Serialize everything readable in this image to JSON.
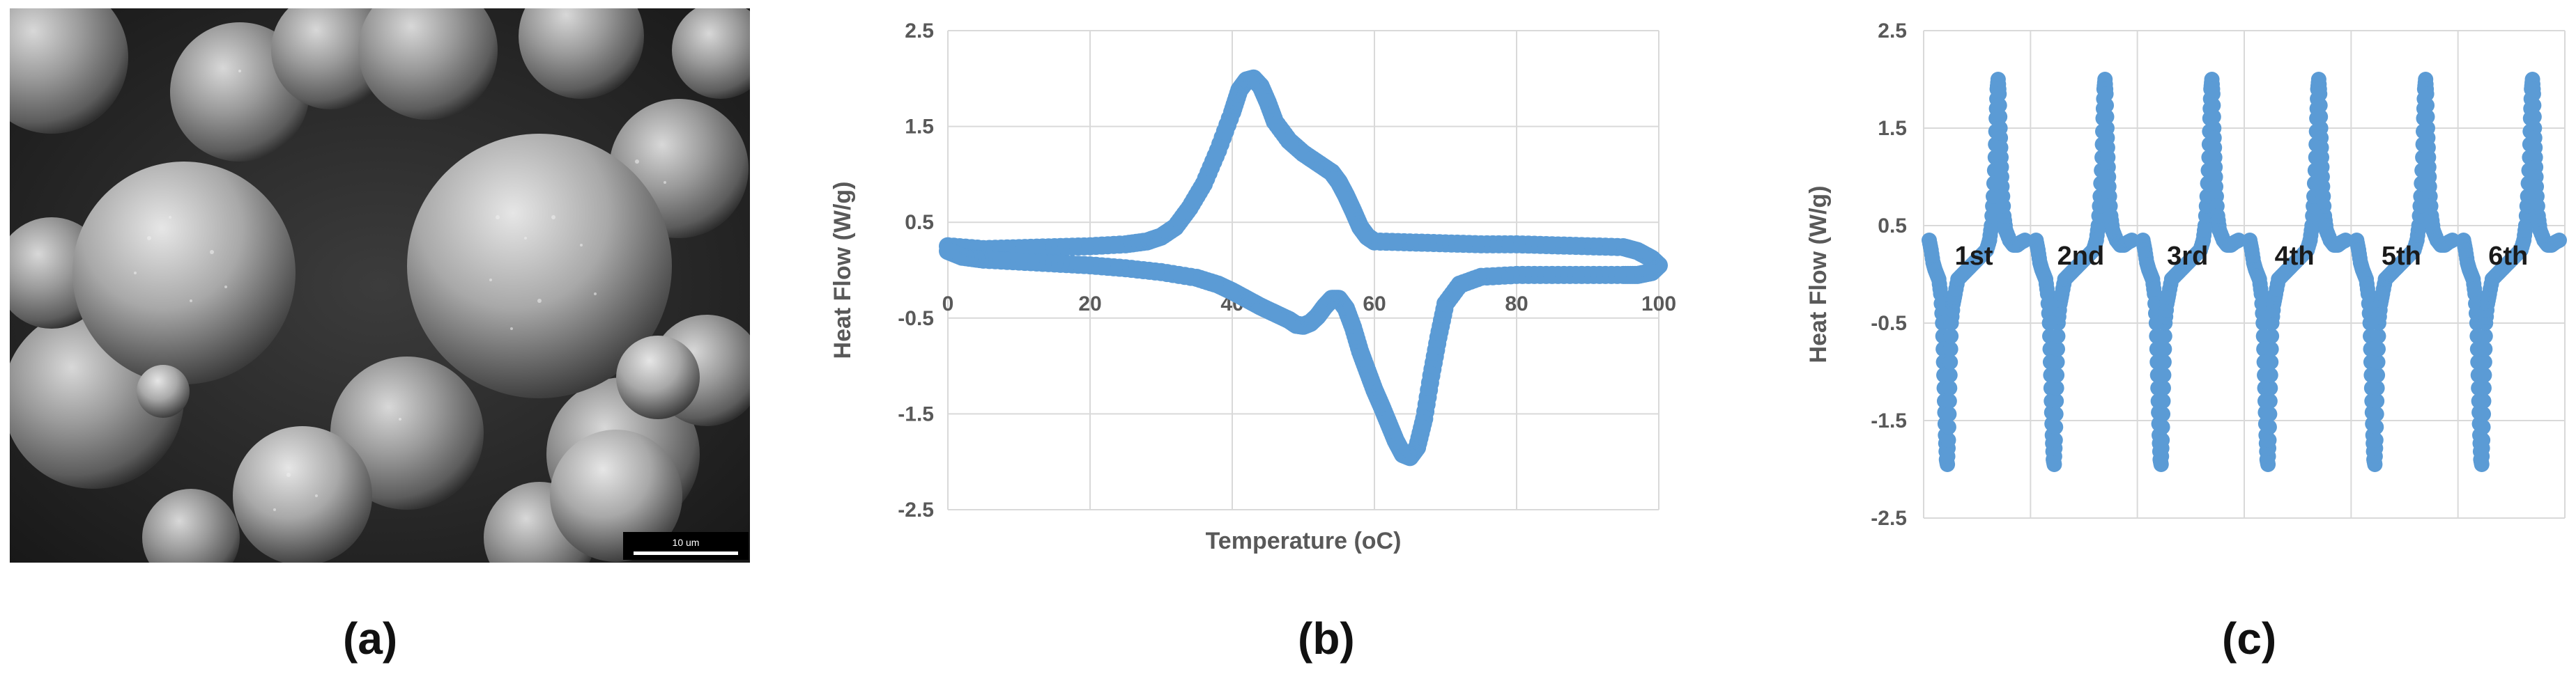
{
  "figure": {
    "panels": [
      {
        "id": "a",
        "label": "(a)",
        "type": "micrograph",
        "scale_bar_text": "10 um"
      },
      {
        "id": "b",
        "label": "(b)"
      },
      {
        "id": "c",
        "label": "(c)"
      }
    ]
  },
  "colors": {
    "series": "#5B9BD5",
    "grid": "#D9D9D9",
    "axis_text": "#595959",
    "cycle_label": "#1a1a1a"
  },
  "chart_data": [
    {
      "panel": "b",
      "type": "scatter",
      "title": "",
      "xlabel": "Temperature (oC)",
      "ylabel": "Heat Flow (W/g)",
      "xlim": [
        0,
        100
      ],
      "ylim": [
        -2.5,
        2.5
      ],
      "x_ticks": [
        "0",
        "20",
        "40",
        "60",
        "80",
        "100"
      ],
      "y_ticks": [
        "2.5",
        "1.5",
        "0.5",
        "-0.5",
        "-1.5",
        "-2.5"
      ],
      "grid": true,
      "series": [
        {
          "points": [
            [
              0,
              0.25
            ],
            [
              5,
              0.22
            ],
            [
              10,
              0.23
            ],
            [
              15,
              0.24
            ],
            [
              20,
              0.25
            ],
            [
              25,
              0.27
            ],
            [
              28,
              0.3
            ],
            [
              30,
              0.35
            ],
            [
              32,
              0.45
            ],
            [
              34,
              0.65
            ],
            [
              36,
              0.9
            ],
            [
              38,
              1.25
            ],
            [
              40,
              1.65
            ],
            [
              41,
              1.88
            ],
            [
              42,
              1.98
            ],
            [
              43,
              2.0
            ],
            [
              44,
              1.92
            ],
            [
              45,
              1.75
            ],
            [
              46,
              1.55
            ],
            [
              48,
              1.35
            ],
            [
              50,
              1.22
            ],
            [
              52,
              1.12
            ],
            [
              54,
              1.02
            ],
            [
              55,
              0.92
            ],
            [
              56,
              0.78
            ],
            [
              57,
              0.62
            ],
            [
              58,
              0.45
            ],
            [
              59,
              0.35
            ],
            [
              60,
              0.3
            ],
            [
              65,
              0.29
            ],
            [
              70,
              0.28
            ],
            [
              75,
              0.27
            ],
            [
              80,
              0.27
            ],
            [
              85,
              0.26
            ],
            [
              90,
              0.25
            ],
            [
              95,
              0.24
            ],
            [
              97,
              0.2
            ],
            [
              99,
              0.12
            ],
            [
              100,
              0.05
            ],
            [
              99,
              -0.02
            ],
            [
              97,
              -0.05
            ],
            [
              95,
              -0.05
            ],
            [
              90,
              -0.05
            ],
            [
              85,
              -0.05
            ],
            [
              80,
              -0.05
            ],
            [
              75,
              -0.07
            ],
            [
              72,
              -0.15
            ],
            [
              70,
              -0.35
            ],
            [
              69,
              -0.7
            ],
            [
              68,
              -1.1
            ],
            [
              67,
              -1.55
            ],
            [
              66,
              -1.85
            ],
            [
              65,
              -1.95
            ],
            [
              64,
              -1.92
            ],
            [
              63,
              -1.78
            ],
            [
              62,
              -1.6
            ],
            [
              61,
              -1.42
            ],
            [
              60,
              -1.25
            ],
            [
              59,
              -1.05
            ],
            [
              58,
              -0.85
            ],
            [
              57,
              -0.6
            ],
            [
              56,
              -0.4
            ],
            [
              55,
              -0.3
            ],
            [
              54,
              -0.3
            ],
            [
              53,
              -0.38
            ],
            [
              52,
              -0.48
            ],
            [
              51,
              -0.55
            ],
            [
              50,
              -0.58
            ],
            [
              49,
              -0.57
            ],
            [
              48,
              -0.52
            ],
            [
              46,
              -0.45
            ],
            [
              44,
              -0.38
            ],
            [
              42,
              -0.3
            ],
            [
              40,
              -0.22
            ],
            [
              38,
              -0.15
            ],
            [
              35,
              -0.08
            ],
            [
              30,
              -0.02
            ],
            [
              25,
              0.02
            ],
            [
              20,
              0.05
            ],
            [
              15,
              0.07
            ],
            [
              10,
              0.09
            ],
            [
              5,
              0.11
            ],
            [
              2,
              0.14
            ],
            [
              0,
              0.2
            ]
          ]
        }
      ]
    },
    {
      "panel": "c",
      "type": "scatter",
      "title": "",
      "xlabel": "",
      "ylabel": "Heat Flow (W/g)",
      "ylim": [
        -2.5,
        2.5
      ],
      "y_ticks": [
        "2.5",
        "1.5",
        "0.5",
        "-0.5",
        "-1.5",
        "-2.5"
      ],
      "grid": true,
      "cycle_labels": [
        "1st",
        "2nd",
        "3rd",
        "4th",
        "5th",
        "6th"
      ],
      "cycle_profile": [
        [
          0.0,
          0.35
        ],
        [
          0.02,
          0.25
        ],
        [
          0.04,
          0.12
        ],
        [
          0.06,
          0.05
        ],
        [
          0.08,
          0.0
        ],
        [
          0.1,
          -0.05
        ],
        [
          0.12,
          -0.2
        ],
        [
          0.14,
          -0.5
        ],
        [
          0.15,
          -0.9
        ],
        [
          0.16,
          -1.3
        ],
        [
          0.17,
          -1.65
        ],
        [
          0.18,
          -1.9
        ],
        [
          0.19,
          -1.95
        ],
        [
          0.2,
          -1.7
        ],
        [
          0.21,
          -1.3
        ],
        [
          0.22,
          -0.9
        ],
        [
          0.23,
          -0.5
        ],
        [
          0.25,
          -0.3
        ],
        [
          0.27,
          -0.2
        ],
        [
          0.3,
          -0.05
        ],
        [
          0.35,
          0.0
        ],
        [
          0.4,
          0.05
        ],
        [
          0.45,
          0.1
        ],
        [
          0.5,
          0.15
        ],
        [
          0.55,
          0.2
        ],
        [
          0.6,
          0.25
        ],
        [
          0.63,
          0.35
        ],
        [
          0.65,
          0.5
        ],
        [
          0.67,
          0.8
        ],
        [
          0.69,
          1.2
        ],
        [
          0.7,
          1.6
        ],
        [
          0.71,
          1.9
        ],
        [
          0.72,
          2.0
        ],
        [
          0.73,
          1.85
        ],
        [
          0.74,
          1.5
        ],
        [
          0.75,
          1.2
        ],
        [
          0.76,
          0.9
        ],
        [
          0.78,
          0.6
        ],
        [
          0.8,
          0.45
        ],
        [
          0.84,
          0.35
        ],
        [
          0.88,
          0.3
        ],
        [
          0.92,
          0.3
        ],
        [
          0.96,
          0.33
        ],
        [
          1.0,
          0.35
        ]
      ]
    }
  ]
}
